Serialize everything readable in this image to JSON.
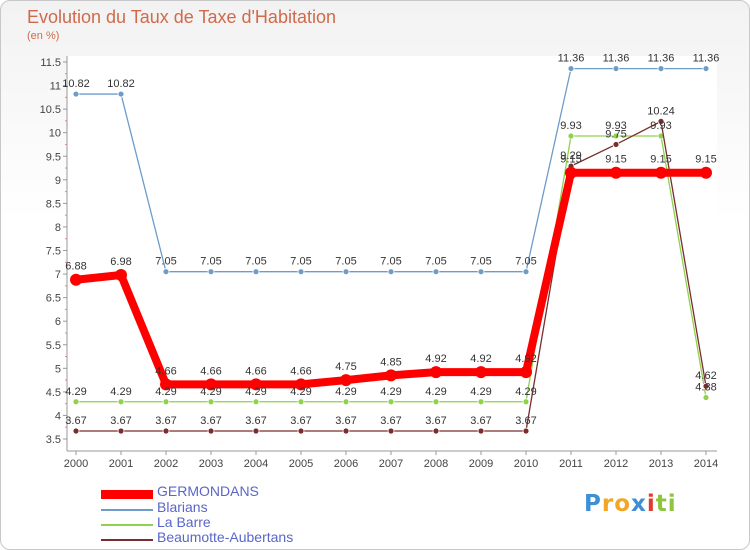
{
  "chart_data": {
    "type": "line",
    "title": "Evolution du Taux de Taxe d'Habitation",
    "subtitle": "(en %)",
    "x": [
      "2000",
      "2001",
      "2002",
      "2003",
      "2004",
      "2005",
      "2006",
      "2007",
      "2008",
      "2009",
      "2010",
      "2011",
      "2012",
      "2013",
      "2014"
    ],
    "ylim": [
      3.5,
      11.5
    ],
    "yticks": [
      "3.5",
      "4",
      "4.5",
      "5",
      "5.5",
      "6",
      "6.5",
      "7",
      "7.5",
      "8",
      "8.5",
      "9",
      "9.5",
      "10",
      "10.5",
      "11",
      "11.5"
    ],
    "grid": false,
    "legend_position": "bottom-left",
    "series": [
      {
        "name": "GERMONDANS",
        "color": "#ff0000",
        "values": [
          6.88,
          6.98,
          4.66,
          4.66,
          4.66,
          4.66,
          4.75,
          4.85,
          4.92,
          4.92,
          4.92,
          9.15,
          9.15,
          9.15,
          9.15
        ],
        "labels": [
          "6.88",
          "6.98",
          "4.66",
          "4.66",
          "4.66",
          "4.66",
          "4.75",
          "4.85",
          "4.92",
          "4.92",
          "4.92",
          "9.15",
          "9.15",
          "9.15",
          "9.15"
        ]
      },
      {
        "name": "Blarians",
        "color": "#6e9cc8",
        "values": [
          10.82,
          10.82,
          7.05,
          7.05,
          7.05,
          7.05,
          7.05,
          7.05,
          7.05,
          7.05,
          7.05,
          11.36,
          11.36,
          11.36,
          11.36
        ],
        "labels": [
          "10.82",
          "10.82",
          "7.05",
          "7.05",
          "7.05",
          "7.05",
          "7.05",
          "7.05",
          "7.05",
          "7.05",
          "7.05",
          "11.36",
          "11.36",
          "11.36",
          "11.36"
        ]
      },
      {
        "name": "La Barre",
        "color": "#8fd24b",
        "values": [
          4.29,
          4.29,
          4.29,
          4.29,
          4.29,
          4.29,
          4.29,
          4.29,
          4.29,
          4.29,
          4.29,
          9.93,
          9.93,
          9.93,
          4.38
        ],
        "labels": [
          "4.29",
          "4.29",
          "4.29",
          "4.29",
          "4.29",
          "4.29",
          "4.29",
          "4.29",
          "4.29",
          "4.29",
          "4.29",
          "9.93",
          "9.93",
          "9.93",
          "4.38"
        ]
      },
      {
        "name": "Beaumotte-Aubertans",
        "color": "#7a2d2d",
        "values": [
          3.67,
          3.67,
          3.67,
          3.67,
          3.67,
          3.67,
          3.67,
          3.67,
          3.67,
          3.67,
          3.67,
          9.29,
          9.75,
          10.24,
          4.62
        ],
        "labels": [
          "3.67",
          "3.67",
          "3.67",
          "3.67",
          "3.67",
          "3.67",
          "3.67",
          "3.67",
          "3.67",
          "3.67",
          "3.67",
          "9.29",
          "9.75",
          "10.24",
          "4.62"
        ]
      }
    ]
  },
  "logo": {
    "letters": [
      "P",
      "r",
      "o",
      "x",
      "i",
      "t",
      "i"
    ],
    "colors": [
      "#3d8fd6",
      "#f2a623",
      "#f2a623",
      "#3d8fd6",
      "#e53a2b",
      "#8cc63e",
      "#8cc63e"
    ]
  }
}
